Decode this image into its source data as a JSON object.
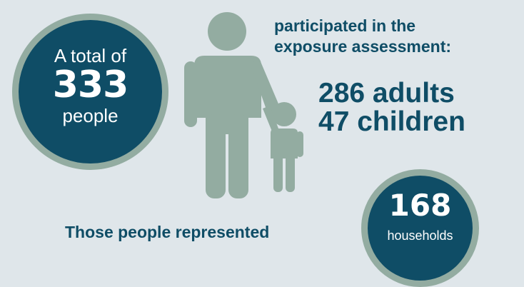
{
  "total": {
    "prefix": "A total of",
    "number": "333",
    "suffix": "people"
  },
  "participation": {
    "heading_line1": "participated in the",
    "heading_line2": "exposure assessment:",
    "adults_number": "286",
    "adults_label": "adults",
    "children_number": "47",
    "children_label": "children"
  },
  "households": {
    "intro": "Those people represented",
    "number": "168",
    "label": "households"
  },
  "icons": {
    "figure": "adult-holding-child-hand-icon"
  },
  "colors": {
    "background": "#dfe6ea",
    "circle_fill": "#0f4d66",
    "circle_ring": "#93aca1",
    "figure": "#93aca1",
    "text_dark": "#0f4d66",
    "text_light": "#ffffff"
  }
}
